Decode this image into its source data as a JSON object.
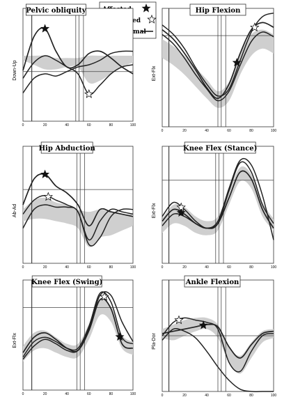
{
  "legend": {
    "affected": "Affected",
    "unaffected": "Unaffected",
    "normal": "Normal"
  },
  "colors": {
    "curve": "#222222",
    "band": "#cfcfcf",
    "frame": "#333333"
  },
  "chart_data": [
    {
      "type": "line",
      "title": "Pelvic obliquity",
      "ylabel": "Down-Up",
      "xlim": [
        0,
        100
      ],
      "x_ticks": [
        "0",
        "20",
        "40",
        "60",
        "80",
        "100"
      ],
      "markers": {
        "affected_at": 20,
        "unaffected_at": 60
      },
      "x": [
        0,
        10,
        20,
        30,
        40,
        50,
        60,
        70,
        80,
        90,
        100
      ],
      "series": [
        {
          "id": "affected",
          "values": [
            0.45,
            0.75,
            0.82,
            0.62,
            0.48,
            0.5,
            0.6,
            0.62,
            0.56,
            0.48,
            0.42
          ]
        },
        {
          "id": "unaffected",
          "values": [
            0.38,
            0.52,
            0.58,
            0.54,
            0.48,
            0.42,
            0.24,
            0.32,
            0.42,
            0.48,
            0.5
          ]
        },
        {
          "id": "third",
          "values": [
            0.25,
            0.38,
            0.42,
            0.4,
            0.44,
            0.48,
            0.5,
            0.54,
            0.6,
            0.62,
            0.62
          ]
        },
        {
          "id": "normal_upper",
          "values": [
            0.58,
            0.58,
            0.58,
            0.56,
            0.56,
            0.56,
            0.58,
            0.58,
            0.58,
            0.58,
            0.58
          ]
        },
        {
          "id": "normal_lower",
          "values": [
            0.54,
            0.5,
            0.46,
            0.46,
            0.48,
            0.48,
            0.34,
            0.36,
            0.42,
            0.48,
            0.52
          ]
        }
      ]
    },
    {
      "type": "line",
      "title": "Hip Flexion",
      "ylabel": "Ext-Flx",
      "xlim": [
        0,
        100
      ],
      "x_ticks": [
        "0",
        "20",
        "40",
        "60",
        "80",
        "100"
      ],
      "markers": {
        "affected_at": 67,
        "unaffected_at": 83
      },
      "x": [
        0,
        10,
        20,
        30,
        40,
        50,
        60,
        70,
        80,
        90,
        100
      ],
      "series": [
        {
          "id": "affected",
          "values": [
            0.82,
            0.74,
            0.62,
            0.48,
            0.33,
            0.24,
            0.36,
            0.62,
            0.82,
            0.88,
            0.84
          ]
        },
        {
          "id": "unaffected",
          "values": [
            0.86,
            0.78,
            0.66,
            0.5,
            0.36,
            0.26,
            0.32,
            0.56,
            0.8,
            0.93,
            0.96
          ]
        },
        {
          "id": "third",
          "values": [
            0.78,
            0.7,
            0.58,
            0.44,
            0.32,
            0.22,
            0.3,
            0.52,
            0.72,
            0.8,
            0.76
          ]
        },
        {
          "id": "normal_upper",
          "values": [
            0.74,
            0.68,
            0.6,
            0.5,
            0.4,
            0.3,
            0.38,
            0.62,
            0.78,
            0.82,
            0.78
          ]
        },
        {
          "id": "normal_lower",
          "values": [
            0.58,
            0.52,
            0.44,
            0.34,
            0.24,
            0.16,
            0.22,
            0.44,
            0.6,
            0.66,
            0.62
          ]
        }
      ]
    },
    {
      "type": "line",
      "title": "Hip Abduction",
      "ylabel": "Ab-Ad",
      "xlim": [
        0,
        100
      ],
      "x_ticks": [
        "0",
        "20",
        "40",
        "60",
        "80",
        "100"
      ],
      "markers": {
        "affected_at": 20,
        "unaffected_at": 23
      },
      "x": [
        0,
        10,
        20,
        30,
        40,
        50,
        60,
        70,
        80,
        90,
        100
      ],
      "series": [
        {
          "id": "affected",
          "values": [
            0.5,
            0.72,
            0.76,
            0.66,
            0.6,
            0.5,
            0.32,
            0.46,
            0.44,
            0.42,
            0.4
          ]
        },
        {
          "id": "unaffected",
          "values": [
            0.42,
            0.54,
            0.58,
            0.54,
            0.5,
            0.44,
            0.2,
            0.36,
            0.46,
            0.44,
            0.42
          ]
        },
        {
          "id": "third",
          "values": [
            0.3,
            0.46,
            0.5,
            0.48,
            0.48,
            0.44,
            0.16,
            0.22,
            0.4,
            0.46,
            0.46
          ]
        },
        {
          "id": "normal_upper",
          "values": [
            0.46,
            0.54,
            0.56,
            0.52,
            0.5,
            0.46,
            0.44,
            0.46,
            0.44,
            0.42,
            0.42
          ]
        },
        {
          "id": "normal_lower",
          "values": [
            0.36,
            0.38,
            0.38,
            0.36,
            0.34,
            0.3,
            0.14,
            0.22,
            0.24,
            0.28,
            0.32
          ]
        }
      ]
    },
    {
      "type": "line",
      "title": "Knee Flex (Stance)",
      "ylabel": "Ext-Flx",
      "xlim": [
        0,
        100
      ],
      "x_ticks": [
        "0",
        "20",
        "40",
        "60",
        "80",
        "100"
      ],
      "markers": {
        "affected_at": 17,
        "unaffected_at": 17
      },
      "x": [
        0,
        10,
        20,
        30,
        40,
        50,
        60,
        70,
        80,
        90,
        100
      ],
      "series": [
        {
          "id": "affected",
          "values": [
            0.36,
            0.46,
            0.42,
            0.34,
            0.3,
            0.34,
            0.56,
            0.78,
            0.72,
            0.46,
            0.3
          ]
        },
        {
          "id": "unaffected",
          "values": [
            0.4,
            0.52,
            0.46,
            0.36,
            0.3,
            0.34,
            0.62,
            0.86,
            0.78,
            0.5,
            0.34
          ]
        },
        {
          "id": "third",
          "values": [
            0.32,
            0.42,
            0.4,
            0.34,
            0.3,
            0.36,
            0.64,
            0.88,
            0.84,
            0.58,
            0.2
          ]
        },
        {
          "id": "normal_upper",
          "values": [
            0.38,
            0.5,
            0.48,
            0.4,
            0.36,
            0.4,
            0.62,
            0.82,
            0.76,
            0.52,
            0.38
          ]
        },
        {
          "id": "normal_lower",
          "values": [
            0.26,
            0.34,
            0.32,
            0.26,
            0.24,
            0.28,
            0.5,
            0.7,
            0.64,
            0.4,
            0.28
          ]
        }
      ]
    },
    {
      "type": "line",
      "title": "Knee Flex (Swing)",
      "ylabel": "Ext-Flx",
      "xlim": [
        0,
        100
      ],
      "x_ticks": [
        "0",
        "20",
        "40",
        "60",
        "80",
        "100"
      ],
      "markers": {
        "affected_at": 88,
        "unaffected_at": 74
      },
      "x": [
        0,
        10,
        20,
        30,
        40,
        50,
        60,
        70,
        80,
        90,
        100
      ],
      "series": [
        {
          "id": "affected",
          "values": [
            0.34,
            0.48,
            0.52,
            0.46,
            0.38,
            0.36,
            0.54,
            0.82,
            0.74,
            0.42,
            0.38
          ]
        },
        {
          "id": "unaffected",
          "values": [
            0.3,
            0.44,
            0.48,
            0.44,
            0.38,
            0.38,
            0.58,
            0.88,
            0.8,
            0.48,
            0.42
          ]
        },
        {
          "id": "third",
          "values": [
            0.28,
            0.4,
            0.46,
            0.42,
            0.36,
            0.36,
            0.56,
            0.86,
            0.86,
            0.62,
            0.44
          ]
        },
        {
          "id": "normal_upper",
          "values": [
            0.4,
            0.52,
            0.54,
            0.48,
            0.42,
            0.42,
            0.6,
            0.82,
            0.76,
            0.5,
            0.44
          ]
        },
        {
          "id": "normal_lower",
          "values": [
            0.26,
            0.36,
            0.38,
            0.34,
            0.3,
            0.3,
            0.46,
            0.68,
            0.62,
            0.38,
            0.32
          ]
        }
      ]
    },
    {
      "type": "line",
      "title": "Ankle Flexion",
      "ylabel": "Pla-Dor",
      "xlim": [
        0,
        100
      ],
      "x_ticks": [
        "0",
        "20",
        "40",
        "60",
        "80",
        "100"
      ],
      "markers": {
        "affected_at": 37,
        "unaffected_at": 15
      },
      "x": [
        0,
        10,
        20,
        30,
        40,
        50,
        60,
        70,
        80,
        90,
        100
      ],
      "series": [
        {
          "id": "affected",
          "values": [
            0.52,
            0.54,
            0.56,
            0.58,
            0.6,
            0.58,
            0.4,
            0.3,
            0.42,
            0.52,
            0.54
          ]
        },
        {
          "id": "unaffected",
          "values": [
            0.5,
            0.62,
            0.66,
            0.64,
            0.62,
            0.56,
            0.26,
            0.18,
            0.36,
            0.5,
            0.52
          ]
        },
        {
          "id": "third",
          "values": [
            0.46,
            0.56,
            0.54,
            0.48,
            0.36,
            0.22,
            0.1,
            0.02,
            0.0,
            0.0,
            0.0
          ]
        },
        {
          "id": "normal_upper",
          "values": [
            0.56,
            0.6,
            0.64,
            0.66,
            0.66,
            0.6,
            0.4,
            0.32,
            0.44,
            0.54,
            0.56
          ]
        },
        {
          "id": "normal_lower",
          "values": [
            0.48,
            0.46,
            0.5,
            0.54,
            0.56,
            0.48,
            0.26,
            0.16,
            0.3,
            0.44,
            0.48
          ]
        }
      ]
    }
  ]
}
